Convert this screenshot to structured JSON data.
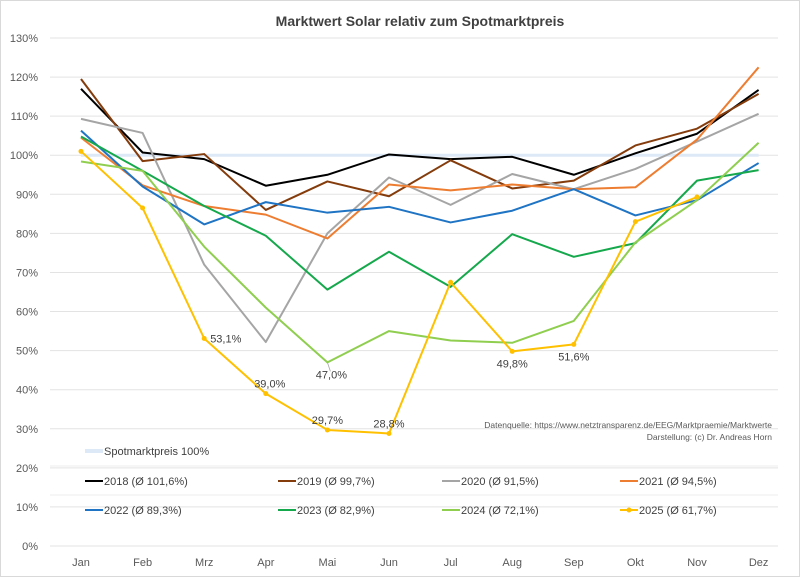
{
  "chart_data": {
    "type": "line",
    "title": "Marktwert Solar relativ zum Spotmarktpreis",
    "xlabel": "",
    "ylabel": "",
    "categories": [
      "Jan",
      "Feb",
      "Mrz",
      "Apr",
      "Mai",
      "Jun",
      "Jul",
      "Aug",
      "Sep",
      "Okt",
      "Nov",
      "Dez"
    ],
    "ylim": [
      0,
      130
    ],
    "yticks": [
      "0%",
      "10%",
      "20%",
      "30%",
      "40%",
      "50%",
      "60%",
      "70%",
      "80%",
      "90%",
      "100%",
      "110%",
      "120%",
      "130%"
    ],
    "grid": true,
    "legend_placement": "bottom",
    "reference_line": {
      "name": "Spotmarktpreis 100%",
      "value": 100,
      "color": "#dde9f7"
    },
    "series": [
      {
        "name": "2018 (Ø 101,6%)",
        "color": "#000000",
        "values": [
          117,
          100.7,
          99,
          92.2,
          95,
          100.2,
          99,
          99.6,
          95,
          100.5,
          105.5,
          116.7
        ]
      },
      {
        "name": "2019 (Ø 99,7%)",
        "color": "#843c0c",
        "values": [
          119.5,
          98.5,
          100.3,
          86,
          93.3,
          89.5,
          98.7,
          91.5,
          93.5,
          102.5,
          106.8,
          115.7
        ]
      },
      {
        "name": "2020 (Ø 91,5%)",
        "color": "#a5a5a5",
        "values": [
          109.3,
          105.7,
          72,
          52.2,
          80,
          94.3,
          87.3,
          95.2,
          91.3,
          96.5,
          103.5,
          110.6
        ]
      },
      {
        "name": "2021 (Ø 94,5%)",
        "color": "#ed7d31",
        "values": [
          104.5,
          92.3,
          87,
          84.8,
          78.7,
          92.5,
          91,
          92.5,
          91.3,
          91.8,
          104,
          122.5
        ]
      },
      {
        "name": "2022 (Ø 89,3%)",
        "color": "#1f74c4",
        "values": [
          106.3,
          92,
          82.3,
          88,
          85.3,
          86.8,
          82.8,
          85.8,
          91.3,
          84.6,
          88.5,
          98
        ]
      },
      {
        "name": "2023 (Ø 82,9%)",
        "color": "#16a84c",
        "values": [
          104.8,
          96,
          87,
          79.4,
          65.6,
          75.3,
          66.3,
          79.8,
          74,
          77.5,
          93.5,
          96.2
        ]
      },
      {
        "name": "2024 (Ø 72,1%)",
        "color": "#8fce4f",
        "values": [
          98.4,
          96,
          76.6,
          61,
          47,
          55,
          52.6,
          52,
          57.6,
          77.7,
          88.5,
          103.2
        ]
      },
      {
        "name": "2025 (Ø 61,7%)",
        "color": "#ffc000",
        "markers": true,
        "values": [
          101,
          86.5,
          53.1,
          39.0,
          29.7,
          28.8,
          67.5,
          49.8,
          51.6,
          83,
          89.3,
          null
        ]
      }
    ],
    "annotations": [
      {
        "series": "2025 (Ø 61,7%)",
        "month": "Mrz",
        "text": "53,1%"
      },
      {
        "series": "2025 (Ø 61,7%)",
        "month": "Apr",
        "text": "39,0%"
      },
      {
        "series": "2025 (Ø 61,7%)",
        "month": "Mai",
        "text": "29,7%"
      },
      {
        "series": "2025 (Ø 61,7%)",
        "month": "Jun",
        "text": "28,8%"
      },
      {
        "series": "2024 (Ø 72,1%)",
        "month": "Mai",
        "text": "47,0%"
      },
      {
        "series": "2025 (Ø 61,7%)",
        "month": "Aug",
        "text": "49,8%"
      },
      {
        "series": "2025 (Ø 61,7%)",
        "month": "Sep",
        "text": "51,6%"
      }
    ],
    "source_note": "Datenquelle: https://www.netztransparenz.de/EEG/Marktpraemie/Marktwerte",
    "credit_note": "Darstellung: (c) Dr. Andreas Horn"
  }
}
